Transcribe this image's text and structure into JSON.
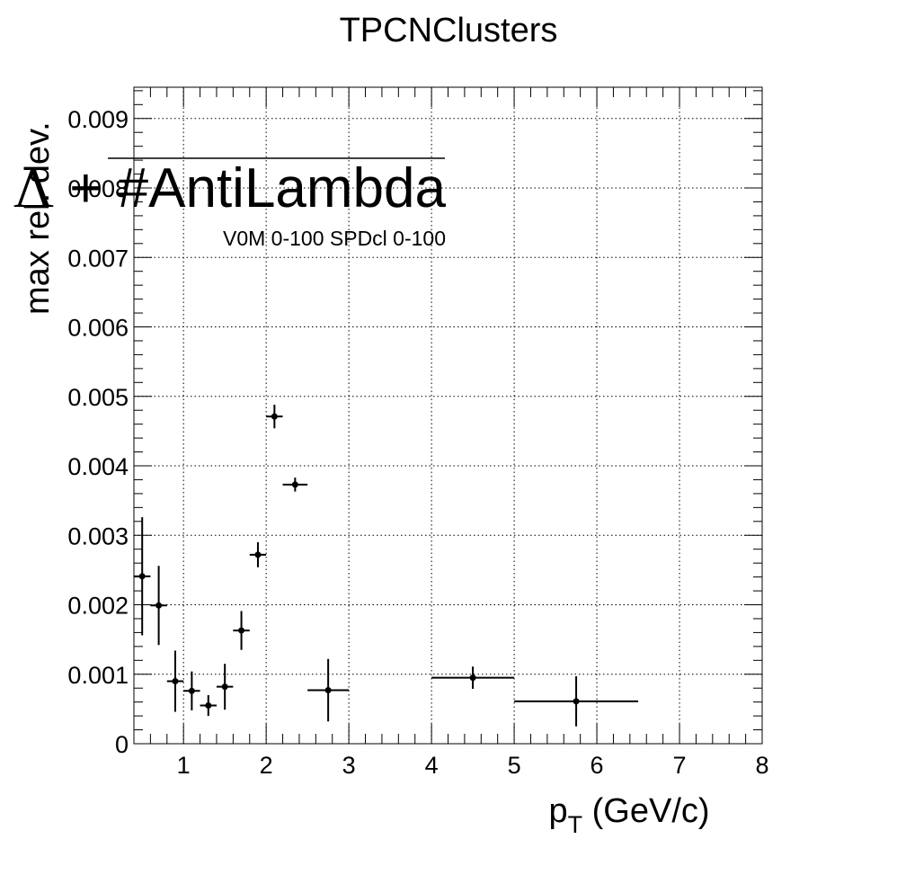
{
  "chart_data": {
    "type": "scatter",
    "title": "TPCNClusters",
    "xlabel": "p_T (GeV/c)",
    "xlabel_main": "p",
    "xlabel_sub": "T",
    "xlabel_unit": " (GeV/c)",
    "ylabel": "max rel. dev.",
    "legend_text": "Λ + #AntiLambda",
    "legend_symbol": "Λ",
    "legend_rest": " + #AntiLambda",
    "annotation": "V0M 0-100 SPDcl 0-100",
    "xlim": [
      0.4,
      8.0
    ],
    "ylim": [
      0,
      0.00945
    ],
    "grid": true,
    "x_ticks": [
      1,
      2,
      3,
      4,
      5,
      6,
      7,
      8
    ],
    "x_tick_labels": [
      "1",
      "2",
      "3",
      "4",
      "5",
      "6",
      "7",
      "8"
    ],
    "y_ticks": [
      0,
      0.001,
      0.002,
      0.003,
      0.004,
      0.005,
      0.006,
      0.007,
      0.008,
      0.009
    ],
    "y_tick_labels": [
      "0",
      "0.001",
      "0.002",
      "0.003",
      "0.004",
      "0.005",
      "0.006",
      "0.007",
      "0.008",
      "0.009"
    ],
    "marker_color": "#000000",
    "points": [
      {
        "x": 0.5,
        "xerr": 0.1,
        "y": 0.00241,
        "yerr": 0.00085
      },
      {
        "x": 0.7,
        "xerr": 0.1,
        "y": 0.00199,
        "yerr": 0.00057
      },
      {
        "x": 0.9,
        "xerr": 0.1,
        "y": 0.0009,
        "yerr": 0.00044
      },
      {
        "x": 1.1,
        "xerr": 0.1,
        "y": 0.00076,
        "yerr": 0.00028
      },
      {
        "x": 1.3,
        "xerr": 0.1,
        "y": 0.00055,
        "yerr": 0.00015
      },
      {
        "x": 1.5,
        "xerr": 0.1,
        "y": 0.00082,
        "yerr": 0.00033
      },
      {
        "x": 1.7,
        "xerr": 0.1,
        "y": 0.00163,
        "yerr": 0.00028
      },
      {
        "x": 1.9,
        "xerr": 0.1,
        "y": 0.00272,
        "yerr": 0.00018
      },
      {
        "x": 2.1,
        "xerr": 0.1,
        "y": 0.00471,
        "yerr": 0.00017
      },
      {
        "x": 2.35,
        "xerr": 0.15,
        "y": 0.00373,
        "yerr": 0.0001
      },
      {
        "x": 2.75,
        "xerr": 0.25,
        "y": 0.00077,
        "yerr": 0.00045
      },
      {
        "x": 4.5,
        "xerr": 0.5,
        "y": 0.00095,
        "yerr": 0.00016
      },
      {
        "x": 5.75,
        "xerr": 0.75,
        "y": 0.00061,
        "yerr": 0.00036
      }
    ]
  }
}
